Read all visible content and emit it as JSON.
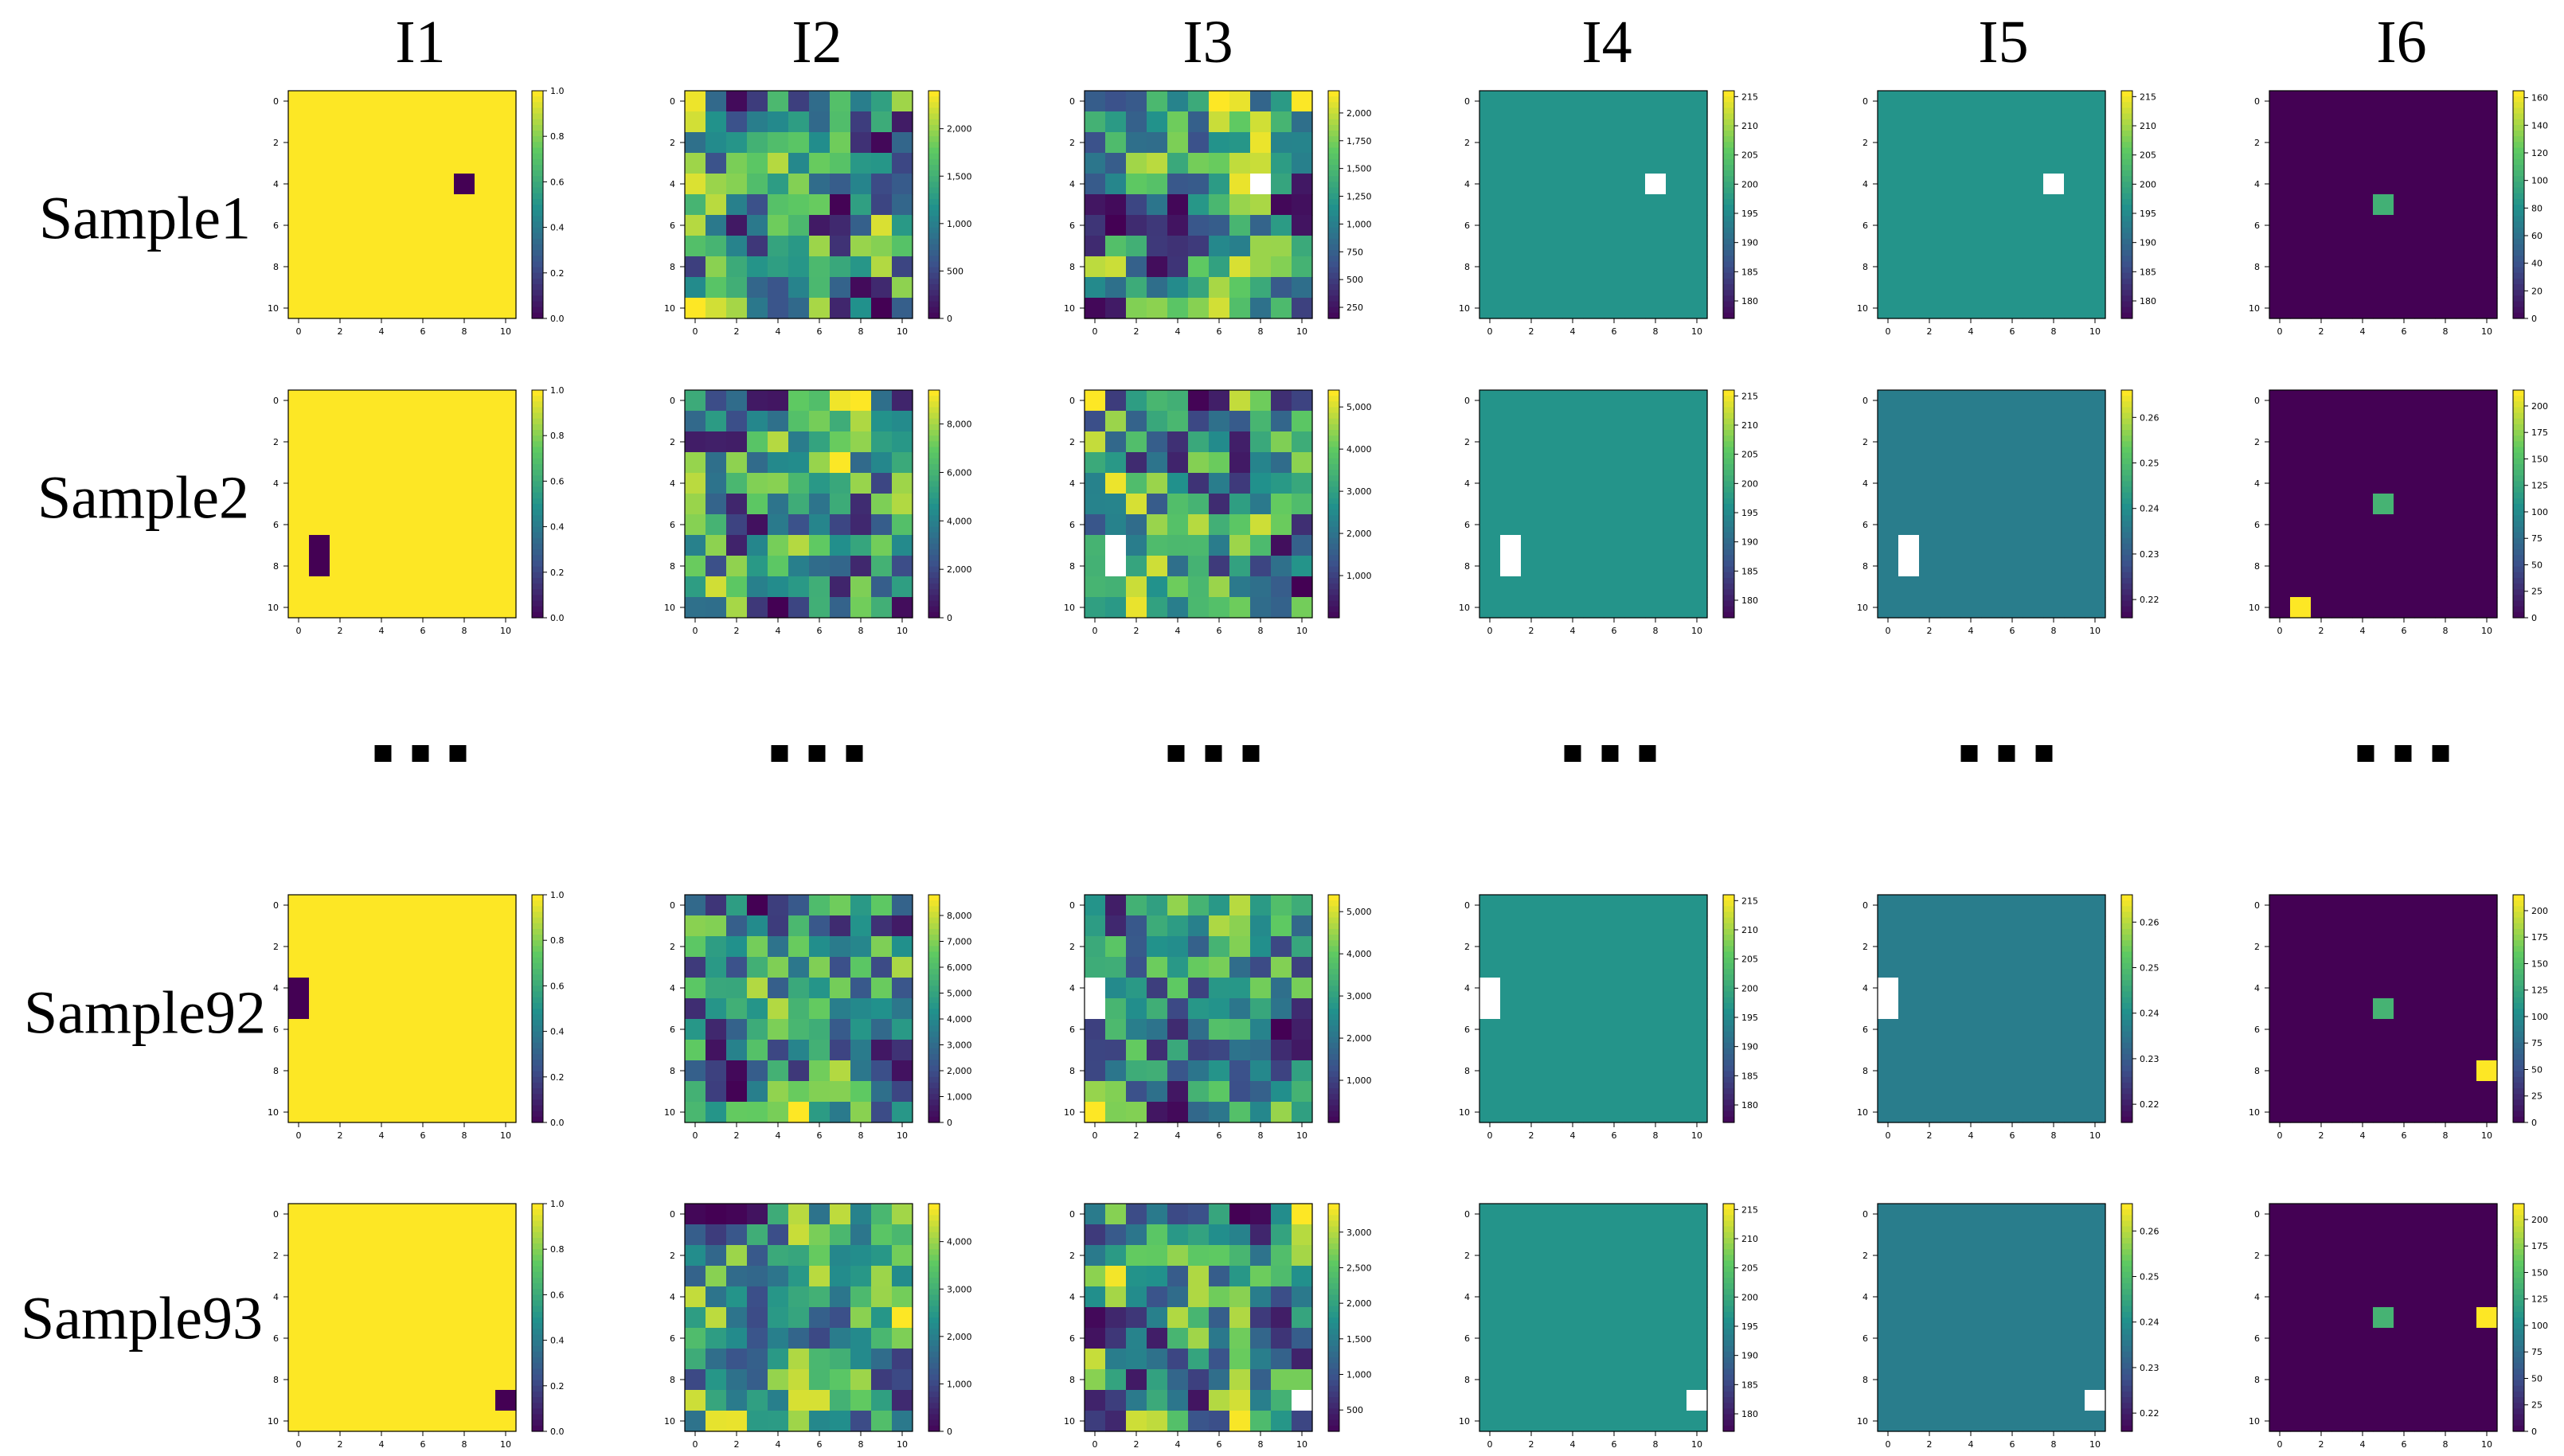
{
  "columns": [
    "I1",
    "I2",
    "I3",
    "I4",
    "I5",
    "I6"
  ],
  "rows": [
    "Sample1",
    "Sample2",
    "Sample92",
    "Sample93"
  ],
  "ellipsis_symbol": "■",
  "colors": {
    "viridis_dark": "#440154",
    "viridis_teal": "#21918c",
    "viridis_yellow": "#fde725",
    "background": "#ffffff"
  },
  "chart_data": [
    {
      "type": "heatmap",
      "row": "Sample1",
      "column": "I1",
      "grid_size": 11,
      "base_value": 1.0,
      "highlights": [
        {
          "x": 8,
          "y": 4,
          "value": 0.0
        }
      ],
      "colorbar": {
        "ticks": [
          "0.0",
          "0.2",
          "0.4",
          "0.6",
          "0.8",
          "1.0"
        ],
        "range": [
          0,
          1
        ]
      },
      "xticks": [
        "0",
        "2",
        "4",
        "6",
        "8",
        "10"
      ],
      "yticks": [
        "0",
        "2",
        "4",
        "6",
        "8",
        "10"
      ]
    },
    {
      "type": "heatmap",
      "row": "Sample1",
      "column": "I2",
      "grid_size": 11,
      "pattern": "random_field",
      "seed": 11,
      "colorbar": {
        "ticks": [
          "0",
          "500",
          "1,000",
          "1,500",
          "2,000"
        ],
        "range": [
          0,
          2400
        ]
      },
      "xticks": [
        "0",
        "2",
        "4",
        "6",
        "8",
        "10"
      ],
      "yticks": [
        "0",
        "2",
        "4",
        "6",
        "8",
        "10"
      ]
    },
    {
      "type": "heatmap",
      "row": "Sample1",
      "column": "I3",
      "grid_size": 11,
      "pattern": "random_field",
      "seed": 21,
      "missing": [
        {
          "x": 8,
          "y": 4
        }
      ],
      "colorbar": {
        "ticks": [
          "250",
          "500",
          "750",
          "1,000",
          "1,250",
          "1,500",
          "1,750",
          "2,000"
        ],
        "range": [
          150,
          2200
        ]
      },
      "xticks": [
        "0",
        "2",
        "4",
        "6",
        "8",
        "10"
      ],
      "yticks": [
        "0",
        "2",
        "4",
        "6",
        "8",
        "10"
      ]
    },
    {
      "type": "heatmap",
      "row": "Sample1",
      "column": "I4",
      "grid_size": 11,
      "base_value": 197,
      "missing": [
        {
          "x": 8,
          "y": 4
        }
      ],
      "colorbar": {
        "ticks": [
          "180",
          "185",
          "190",
          "195",
          "200",
          "205",
          "210",
          "215"
        ],
        "range": [
          177,
          216
        ]
      },
      "xticks": [
        "0",
        "2",
        "4",
        "6",
        "8",
        "10"
      ],
      "yticks": [
        "0",
        "2",
        "4",
        "6",
        "8",
        "10"
      ]
    },
    {
      "type": "heatmap",
      "row": "Sample1",
      "column": "I5",
      "grid_size": 11,
      "base_value": 197,
      "missing": [
        {
          "x": 8,
          "y": 4
        }
      ],
      "colorbar": {
        "ticks": [
          "180",
          "185",
          "190",
          "195",
          "200",
          "205",
          "210",
          "215"
        ],
        "range": [
          177,
          216
        ]
      },
      "xticks": [
        "0",
        "2",
        "4",
        "6",
        "8",
        "10"
      ],
      "yticks": [
        "0",
        "2",
        "4",
        "6",
        "8",
        "10"
      ]
    },
    {
      "type": "heatmap",
      "row": "Sample1",
      "column": "I6",
      "grid_size": 11,
      "base_value": 0,
      "highlights": [
        {
          "x": 5,
          "y": 5,
          "value": 105
        }
      ],
      "colorbar": {
        "ticks": [
          "0",
          "20",
          "40",
          "60",
          "80",
          "100",
          "120",
          "140",
          "160"
        ],
        "range": [
          0,
          165
        ]
      },
      "xticks": [
        "0",
        "2",
        "4",
        "6",
        "8",
        "10"
      ],
      "yticks": [
        "0",
        "2",
        "4",
        "6",
        "8",
        "10"
      ]
    },
    {
      "type": "heatmap",
      "row": "Sample2",
      "column": "I1",
      "grid_size": 11,
      "base_value": 1.0,
      "highlights": [
        {
          "x": 1,
          "y": 7,
          "value": 0.0
        },
        {
          "x": 1,
          "y": 8,
          "value": 0.0
        }
      ],
      "colorbar": {
        "ticks": [
          "0.0",
          "0.2",
          "0.4",
          "0.6",
          "0.8",
          "1.0"
        ],
        "range": [
          0,
          1
        ]
      },
      "xticks": [
        "0",
        "2",
        "4",
        "6",
        "8",
        "10"
      ],
      "yticks": [
        "0",
        "2",
        "4",
        "6",
        "8",
        "10"
      ]
    },
    {
      "type": "heatmap",
      "row": "Sample2",
      "column": "I2",
      "grid_size": 11,
      "pattern": "random_field",
      "seed": 31,
      "colorbar": {
        "ticks": [
          "0",
          "2,000",
          "4,000",
          "6,000",
          "8,000"
        ],
        "range": [
          0,
          9400
        ]
      },
      "xticks": [
        "0",
        "2",
        "4",
        "6",
        "8",
        "10"
      ],
      "yticks": [
        "0",
        "2",
        "4",
        "6",
        "8",
        "10"
      ]
    },
    {
      "type": "heatmap",
      "row": "Sample2",
      "column": "I3",
      "grid_size": 11,
      "pattern": "random_field",
      "seed": 41,
      "missing": [
        {
          "x": 1,
          "y": 7
        },
        {
          "x": 1,
          "y": 8
        }
      ],
      "colorbar": {
        "ticks": [
          "1,000",
          "2,000",
          "3,000",
          "4,000",
          "5,000"
        ],
        "range": [
          0,
          5400
        ]
      },
      "xticks": [
        "0",
        "2",
        "4",
        "6",
        "8",
        "10"
      ],
      "yticks": [
        "0",
        "2",
        "4",
        "6",
        "8",
        "10"
      ]
    },
    {
      "type": "heatmap",
      "row": "Sample2",
      "column": "I4",
      "grid_size": 11,
      "base_value": 197,
      "missing": [
        {
          "x": 1,
          "y": 7
        },
        {
          "x": 1,
          "y": 8
        }
      ],
      "colorbar": {
        "ticks": [
          "180",
          "185",
          "190",
          "195",
          "200",
          "205",
          "210",
          "215"
        ],
        "range": [
          177,
          216
        ]
      },
      "xticks": [
        "0",
        "2",
        "4",
        "6",
        "8",
        "10"
      ],
      "yticks": [
        "0",
        "2",
        "4",
        "6",
        "8",
        "10"
      ]
    },
    {
      "type": "heatmap",
      "row": "Sample2",
      "column": "I5",
      "grid_size": 11,
      "base_value": 0.237,
      "missing": [
        {
          "x": 1,
          "y": 7
        },
        {
          "x": 1,
          "y": 8
        }
      ],
      "colorbar": {
        "ticks": [
          "0.22",
          "0.23",
          "0.24",
          "0.25",
          "0.26"
        ],
        "range": [
          0.216,
          0.266
        ]
      },
      "xticks": [
        "0",
        "2",
        "4",
        "6",
        "8",
        "10"
      ],
      "yticks": [
        "0",
        "2",
        "4",
        "6",
        "8",
        "10"
      ]
    },
    {
      "type": "heatmap",
      "row": "Sample2",
      "column": "I6",
      "grid_size": 11,
      "base_value": 0,
      "highlights": [
        {
          "x": 5,
          "y": 5,
          "value": 140
        },
        {
          "x": 1,
          "y": 10,
          "value": 215
        }
      ],
      "colorbar": {
        "ticks": [
          "0",
          "25",
          "50",
          "75",
          "100",
          "125",
          "150",
          "175",
          "200"
        ],
        "range": [
          0,
          215
        ]
      },
      "xticks": [
        "0",
        "2",
        "4",
        "6",
        "8",
        "10"
      ],
      "yticks": [
        "0",
        "2",
        "4",
        "6",
        "8",
        "10"
      ]
    },
    {
      "type": "heatmap",
      "row": "Sample92",
      "column": "I1",
      "grid_size": 11,
      "base_value": 1.0,
      "highlights": [
        {
          "x": 0,
          "y": 4,
          "value": 0.0
        },
        {
          "x": 0,
          "y": 5,
          "value": 0.0
        }
      ],
      "colorbar": {
        "ticks": [
          "0.0",
          "0.2",
          "0.4",
          "0.6",
          "0.8",
          "1.0"
        ],
        "range": [
          0,
          1
        ]
      },
      "xticks": [
        "0",
        "2",
        "4",
        "6",
        "8",
        "10"
      ],
      "yticks": [
        "0",
        "2",
        "4",
        "6",
        "8",
        "10"
      ]
    },
    {
      "type": "heatmap",
      "row": "Sample92",
      "column": "I2",
      "grid_size": 11,
      "pattern": "random_field",
      "seed": 51,
      "colorbar": {
        "ticks": [
          "0",
          "1,000",
          "2,000",
          "3,000",
          "4,000",
          "5,000",
          "6,000",
          "7,000",
          "8,000"
        ],
        "range": [
          0,
          8800
        ]
      },
      "xticks": [
        "0",
        "2",
        "4",
        "6",
        "8",
        "10"
      ],
      "yticks": [
        "0",
        "2",
        "4",
        "6",
        "8",
        "10"
      ]
    },
    {
      "type": "heatmap",
      "row": "Sample92",
      "column": "I3",
      "grid_size": 11,
      "pattern": "random_field",
      "seed": 61,
      "missing": [
        {
          "x": 0,
          "y": 4
        },
        {
          "x": 0,
          "y": 5
        }
      ],
      "colorbar": {
        "ticks": [
          "1,000",
          "2,000",
          "3,000",
          "4,000",
          "5,000"
        ],
        "range": [
          0,
          5400
        ]
      },
      "xticks": [
        "0",
        "2",
        "4",
        "6",
        "8",
        "10"
      ],
      "yticks": [
        "0",
        "2",
        "4",
        "6",
        "8",
        "10"
      ]
    },
    {
      "type": "heatmap",
      "row": "Sample92",
      "column": "I4",
      "grid_size": 11,
      "base_value": 197,
      "missing": [
        {
          "x": 0,
          "y": 4
        },
        {
          "x": 0,
          "y": 5
        }
      ],
      "colorbar": {
        "ticks": [
          "180",
          "185",
          "190",
          "195",
          "200",
          "205",
          "210",
          "215"
        ],
        "range": [
          177,
          216
        ]
      },
      "xticks": [
        "0",
        "2",
        "4",
        "6",
        "8",
        "10"
      ],
      "yticks": [
        "0",
        "2",
        "4",
        "6",
        "8",
        "10"
      ]
    },
    {
      "type": "heatmap",
      "row": "Sample92",
      "column": "I5",
      "grid_size": 11,
      "base_value": 0.237,
      "missing": [
        {
          "x": 0,
          "y": 4
        },
        {
          "x": 0,
          "y": 5
        }
      ],
      "colorbar": {
        "ticks": [
          "0.22",
          "0.23",
          "0.24",
          "0.25",
          "0.26"
        ],
        "range": [
          0.216,
          0.266
        ]
      },
      "xticks": [
        "0",
        "2",
        "4",
        "6",
        "8",
        "10"
      ],
      "yticks": [
        "0",
        "2",
        "4",
        "6",
        "8",
        "10"
      ]
    },
    {
      "type": "heatmap",
      "row": "Sample92",
      "column": "I6",
      "grid_size": 11,
      "base_value": 0,
      "highlights": [
        {
          "x": 5,
          "y": 5,
          "value": 140
        },
        {
          "x": 10,
          "y": 8,
          "value": 215
        }
      ],
      "colorbar": {
        "ticks": [
          "0",
          "25",
          "50",
          "75",
          "100",
          "125",
          "150",
          "175",
          "200"
        ],
        "range": [
          0,
          215
        ]
      },
      "xticks": [
        "0",
        "2",
        "4",
        "6",
        "8",
        "10"
      ],
      "yticks": [
        "0",
        "2",
        "4",
        "6",
        "8",
        "10"
      ]
    },
    {
      "type": "heatmap",
      "row": "Sample93",
      "column": "I1",
      "grid_size": 11,
      "base_value": 1.0,
      "highlights": [
        {
          "x": 10,
          "y": 9,
          "value": 0.0
        }
      ],
      "colorbar": {
        "ticks": [
          "0.0",
          "0.2",
          "0.4",
          "0.6",
          "0.8",
          "1.0"
        ],
        "range": [
          0,
          1
        ]
      },
      "xticks": [
        "0",
        "2",
        "4",
        "6",
        "8",
        "10"
      ],
      "yticks": [
        "0",
        "2",
        "4",
        "6",
        "8",
        "10"
      ]
    },
    {
      "type": "heatmap",
      "row": "Sample93",
      "column": "I2",
      "grid_size": 11,
      "pattern": "random_field",
      "seed": 71,
      "colorbar": {
        "ticks": [
          "0",
          "1,000",
          "2,000",
          "3,000",
          "4,000"
        ],
        "range": [
          0,
          4800
        ]
      },
      "xticks": [
        "0",
        "2",
        "4",
        "6",
        "8",
        "10"
      ],
      "yticks": [
        "0",
        "2",
        "4",
        "6",
        "8",
        "10"
      ]
    },
    {
      "type": "heatmap",
      "row": "Sample93",
      "column": "I3",
      "grid_size": 11,
      "pattern": "random_field",
      "seed": 81,
      "missing": [
        {
          "x": 10,
          "y": 9
        }
      ],
      "colorbar": {
        "ticks": [
          "500",
          "1,000",
          "1,500",
          "2,000",
          "2,500",
          "3,000"
        ],
        "range": [
          200,
          3400
        ]
      },
      "xticks": [
        "0",
        "2",
        "4",
        "6",
        "8",
        "10"
      ],
      "yticks": [
        "0",
        "2",
        "4",
        "6",
        "8",
        "10"
      ]
    },
    {
      "type": "heatmap",
      "row": "Sample93",
      "column": "I4",
      "grid_size": 11,
      "base_value": 197,
      "missing": [
        {
          "x": 10,
          "y": 9
        }
      ],
      "colorbar": {
        "ticks": [
          "180",
          "185",
          "190",
          "195",
          "200",
          "205",
          "210",
          "215"
        ],
        "range": [
          177,
          216
        ]
      },
      "xticks": [
        "0",
        "2",
        "4",
        "6",
        "8",
        "10"
      ],
      "yticks": [
        "0",
        "2",
        "4",
        "6",
        "8",
        "10"
      ]
    },
    {
      "type": "heatmap",
      "row": "Sample93",
      "column": "I5",
      "grid_size": 11,
      "base_value": 0.237,
      "missing": [
        {
          "x": 10,
          "y": 9
        }
      ],
      "colorbar": {
        "ticks": [
          "0.22",
          "0.23",
          "0.24",
          "0.25",
          "0.26"
        ],
        "range": [
          0.216,
          0.266
        ]
      },
      "xticks": [
        "0",
        "2",
        "4",
        "6",
        "8",
        "10"
      ],
      "yticks": [
        "0",
        "2",
        "4",
        "6",
        "8",
        "10"
      ]
    },
    {
      "type": "heatmap",
      "row": "Sample93",
      "column": "I6",
      "grid_size": 11,
      "base_value": 0,
      "highlights": [
        {
          "x": 5,
          "y": 5,
          "value": 140
        },
        {
          "x": 10,
          "y": 5,
          "value": 215
        }
      ],
      "colorbar": {
        "ticks": [
          "0",
          "25",
          "50",
          "75",
          "100",
          "125",
          "150",
          "175",
          "200"
        ],
        "range": [
          0,
          215
        ]
      },
      "xticks": [
        "0",
        "2",
        "4",
        "6",
        "8",
        "10"
      ],
      "yticks": [
        "0",
        "2",
        "4",
        "6",
        "8",
        "10"
      ]
    }
  ]
}
